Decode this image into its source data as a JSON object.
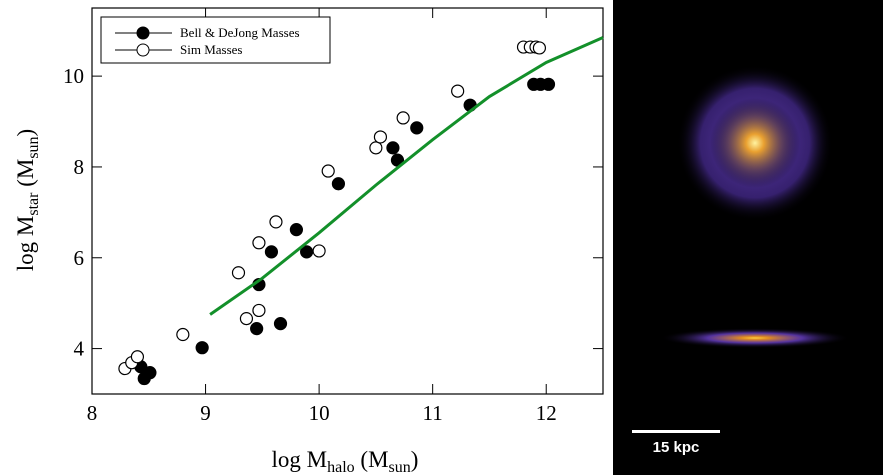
{
  "chart_data": {
    "type": "scatter",
    "x_label": [
      "log M",
      "halo",
      " (M",
      "sun",
      ")"
    ],
    "y_label": [
      "log M",
      "star",
      " (M",
      "sun",
      ")"
    ],
    "xlim": [
      8,
      12.5
    ],
    "ylim": [
      3,
      11.5
    ],
    "xticks": [
      8,
      9,
      10,
      11,
      12
    ],
    "yticks": [
      4,
      6,
      8,
      10
    ],
    "legend": "top-left",
    "series": [
      {
        "name": "Bell & DeJong Masses",
        "marker": "filled",
        "color": "#000000",
        "x": [
          8.43,
          8.46,
          8.51,
          8.97,
          9.45,
          9.66,
          9.47,
          9.58,
          9.8,
          9.89,
          10.17,
          10.65,
          10.69,
          10.86,
          11.33,
          11.89,
          11.95,
          12.02
        ],
        "values": [
          3.6,
          3.34,
          3.47,
          4.02,
          4.44,
          4.55,
          5.41,
          6.13,
          6.62,
          6.13,
          7.63,
          8.42,
          8.15,
          8.86,
          9.36,
          9.82,
          9.82,
          9.82
        ]
      },
      {
        "name": "Sim Masses",
        "marker": "open",
        "color": "#000000",
        "x": [
          8.29,
          8.35,
          8.4,
          8.8,
          9.29,
          9.47,
          9.62,
          9.36,
          9.47,
          10.0,
          10.08,
          10.5,
          10.54,
          10.74,
          11.22,
          11.8,
          11.86,
          11.91,
          11.94
        ],
        "values": [
          3.56,
          3.69,
          3.82,
          4.31,
          5.67,
          6.33,
          6.79,
          4.66,
          4.84,
          6.15,
          7.91,
          8.42,
          8.66,
          9.08,
          9.67,
          10.64,
          10.64,
          10.64,
          10.62
        ]
      },
      {
        "marker": "line",
        "color": "#13902a",
        "x": [
          9.04,
          9.5,
          10.0,
          10.5,
          11.0,
          11.5,
          12.0,
          12.5
        ],
        "values": [
          4.75,
          5.55,
          6.55,
          7.6,
          8.6,
          9.55,
          10.3,
          10.85
        ]
      }
    ]
  },
  "image_panel": {
    "scale_label": "15 kpc"
  }
}
